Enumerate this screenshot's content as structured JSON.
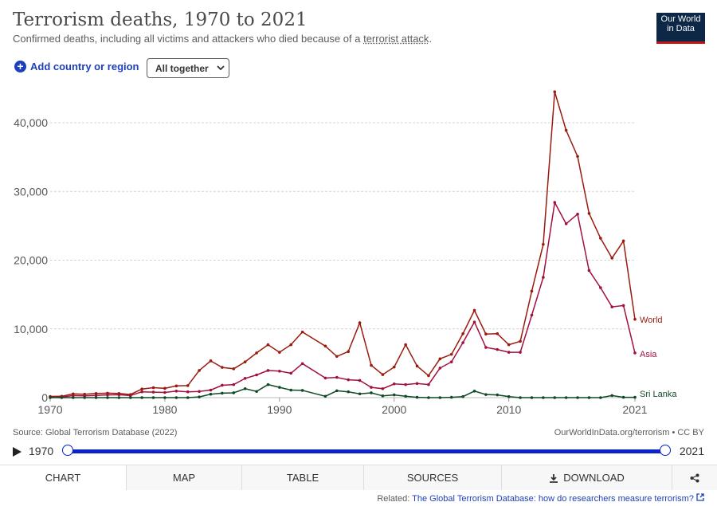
{
  "header": {
    "title": "Terrorism deaths, 1970 to 2021",
    "subtitle_prefix": "Confirmed deaths, including all victims and attackers who died because of a ",
    "subtitle_link": "terrorist attack",
    "subtitle_suffix": ".",
    "logo_line1": "Our World",
    "logo_line2": "in Data"
  },
  "controls": {
    "add_label": "Add country or region",
    "select_label": "All together"
  },
  "chart_data": {
    "type": "line",
    "x": [
      1970,
      1971,
      1972,
      1973,
      1974,
      1975,
      1976,
      1977,
      1978,
      1979,
      1980,
      1981,
      1982,
      1983,
      1984,
      1985,
      1986,
      1987,
      1988,
      1989,
      1990,
      1991,
      1992,
      1994,
      1995,
      1996,
      1997,
      1998,
      1999,
      2000,
      2001,
      2002,
      2003,
      2004,
      2005,
      2006,
      2007,
      2008,
      2009,
      2010,
      2011,
      2012,
      2013,
      2014,
      2015,
      2016,
      2017,
      2018,
      2019,
      2020,
      2021
    ],
    "series": [
      {
        "name": "World",
        "color": "#9a1b0d",
        "values": [
          170,
          200,
          550,
          500,
          600,
          650,
          600,
          450,
          1250,
          1450,
          1350,
          1700,
          1750,
          3950,
          5350,
          4400,
          4200,
          5200,
          6500,
          7700,
          6600,
          7700,
          9550,
          7500,
          6000,
          6700,
          10900,
          4700,
          3350,
          4450,
          7700,
          4600,
          3200,
          5650,
          6300,
          9300,
          12700,
          9250,
          9300,
          7700,
          8200,
          15500,
          22300,
          44500,
          38900,
          35100,
          26800,
          23200,
          20300,
          22800,
          11400
        ]
      },
      {
        "name": "Asia",
        "color": "#a2103e",
        "values": [
          50,
          70,
          300,
          250,
          330,
          400,
          420,
          300,
          850,
          800,
          750,
          950,
          850,
          900,
          1100,
          1800,
          1900,
          2800,
          3300,
          3950,
          3850,
          3550,
          4950,
          2850,
          2950,
          2600,
          2500,
          1500,
          1300,
          2000,
          1900,
          2050,
          1900,
          4300,
          5200,
          8000,
          11000,
          7300,
          7000,
          6600,
          6600,
          12000,
          17500,
          28400,
          25300,
          26700,
          18500,
          16000,
          13200,
          13400,
          6500
        ]
      },
      {
        "name": "Sri Lanka",
        "color": "#0f4a26",
        "values": [
          0,
          0,
          0,
          0,
          0,
          0,
          0,
          0,
          0,
          0,
          0,
          0,
          0,
          100,
          500,
          650,
          700,
          1300,
          900,
          1900,
          1500,
          1100,
          1050,
          200,
          1000,
          850,
          550,
          700,
          250,
          400,
          200,
          50,
          0,
          0,
          50,
          150,
          950,
          450,
          400,
          150,
          0,
          0,
          0,
          0,
          0,
          0,
          0,
          0,
          300,
          50,
          50
        ]
      }
    ],
    "xticks": [
      1970,
      1980,
      1990,
      2000,
      2010,
      2021
    ],
    "yticks": [
      0,
      10000,
      20000,
      30000,
      40000
    ],
    "ytick_labels": [
      "0",
      "10,000",
      "20,000",
      "30,000",
      "40,000"
    ],
    "ylim": [
      0,
      46000
    ],
    "xlim": [
      1970,
      2021
    ],
    "grid": "horizontal-dashed",
    "legend": "end-of-line labels"
  },
  "footer": {
    "source": "Source: Global Terrorism Database (2022)",
    "owid": "OurWorldInData.org/terrorism • CC BY",
    "related_prefix": "Related:",
    "related_link": "The Global Terrorism Database: how do researchers measure terrorism?"
  },
  "timeline": {
    "start": "1970",
    "end": "2021"
  },
  "tabs": [
    "CHART",
    "MAP",
    "TABLE",
    "SOURCES",
    "DOWNLOAD"
  ],
  "icons": {
    "download": "download-icon",
    "share": "share-icon",
    "play": "play-icon",
    "external": "external-link-icon"
  }
}
